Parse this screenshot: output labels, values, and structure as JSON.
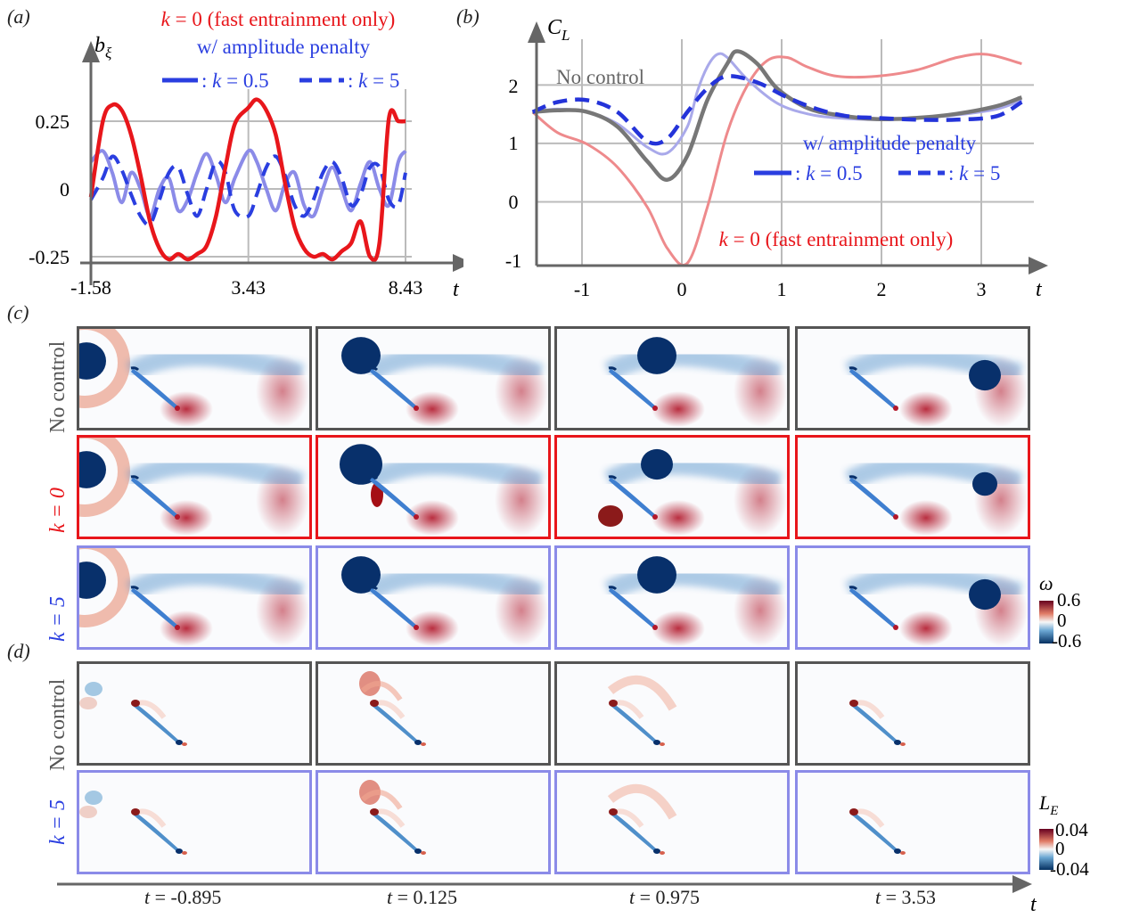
{
  "panels": {
    "a": "a",
    "b": "b",
    "c": "c",
    "d": "d"
  },
  "chart_data": [
    {
      "type": "line",
      "panel": "a",
      "ylabel": "bξ",
      "xlabel": "t",
      "x_ticks": [
        "-1.58",
        "3.43",
        "8.43"
      ],
      "y_ticks": [
        "0.25",
        "0",
        "-0.25"
      ],
      "xlim": [
        -1.58,
        8.43
      ],
      "ylim": [
        -0.25,
        0.25
      ],
      "legend_title": "w/ amplitude penalty",
      "series": [
        {
          "name": "k = 0 (fast entrainment only)",
          "color": "#e8161b",
          "x": [
            -1.58,
            -1.2,
            -0.9,
            -0.6,
            -0.3,
            0.0,
            0.3,
            0.6,
            0.9,
            1.2,
            1.5,
            1.8,
            2.1,
            2.4,
            2.7,
            3.0,
            3.43,
            3.7,
            4.0,
            4.3,
            4.6,
            4.9,
            5.2,
            5.5,
            5.8,
            6.1,
            6.4,
            6.7,
            7.0,
            7.3,
            7.6,
            7.9,
            8.2,
            8.43
          ],
          "y": [
            -0.03,
            0.25,
            0.31,
            0.29,
            0.2,
            0.05,
            -0.12,
            -0.22,
            -0.26,
            -0.24,
            -0.26,
            -0.24,
            -0.21,
            -0.1,
            0.08,
            0.24,
            0.3,
            0.33,
            0.29,
            0.2,
            0.02,
            -0.14,
            -0.22,
            -0.25,
            -0.24,
            -0.26,
            -0.23,
            -0.2,
            -0.12,
            -0.25,
            -0.2,
            0.26,
            0.25,
            0.25
          ]
        },
        {
          "name": "k = 0.5",
          "color": "#8b8be8",
          "x": [
            -1.58,
            -1.2,
            -0.9,
            -0.6,
            -0.3,
            0.0,
            0.3,
            0.6,
            0.9,
            1.2,
            1.5,
            1.8,
            2.1,
            2.4,
            2.7,
            3.0,
            3.43,
            3.7,
            4.0,
            4.3,
            4.6,
            4.9,
            5.2,
            5.5,
            5.8,
            6.1,
            6.4,
            6.7,
            7.0,
            7.3,
            7.6,
            7.9,
            8.2,
            8.43
          ],
          "y": [
            0.1,
            0.14,
            0.06,
            -0.05,
            0.06,
            0.0,
            -0.1,
            0.0,
            0.04,
            -0.08,
            -0.04,
            0.06,
            0.13,
            0.05,
            -0.05,
            0.04,
            0.14,
            0.1,
            0.0,
            -0.08,
            0.02,
            0.06,
            -0.06,
            -0.1,
            0.0,
            0.08,
            0.0,
            -0.08,
            0.02,
            0.1,
            0.0,
            -0.06,
            0.1,
            0.14
          ]
        },
        {
          "name": "k = 5",
          "color": "#2a3ee0",
          "x": [
            -1.58,
            -1.2,
            -0.9,
            -0.6,
            -0.3,
            0.0,
            0.3,
            0.6,
            0.9,
            1.2,
            1.5,
            1.8,
            2.1,
            2.4,
            2.7,
            3.0,
            3.43,
            3.7,
            4.0,
            4.3,
            4.6,
            4.9,
            5.2,
            5.5,
            5.8,
            6.1,
            6.4,
            6.7,
            7.0,
            7.3,
            7.6,
            7.9,
            8.2,
            8.43
          ],
          "y": [
            -0.04,
            0.04,
            0.12,
            0.07,
            -0.02,
            -0.1,
            -0.13,
            -0.04,
            0.06,
            0.08,
            -0.02,
            -0.1,
            0.0,
            0.1,
            0.06,
            -0.08,
            -0.1,
            -0.02,
            0.08,
            0.12,
            0.05,
            -0.06,
            -0.1,
            -0.04,
            0.06,
            0.1,
            0.04,
            -0.06,
            -0.02,
            0.08,
            0.08,
            -0.04,
            -0.06,
            0.06
          ]
        }
      ]
    },
    {
      "type": "line",
      "panel": "b",
      "ylabel": "CL",
      "xlabel": "t",
      "x_ticks": [
        "-1",
        "0",
        "1",
        "2",
        "3"
      ],
      "y_ticks": [
        "2",
        "1",
        "0",
        "-1"
      ],
      "xlim": [
        -1.45,
        3.45
      ],
      "ylim": [
        -1,
        2.6
      ],
      "annotations": [
        "No control",
        "w/ amplitude penalty",
        "k = 0 (fast entrainment only)"
      ],
      "series": [
        {
          "name": "No control",
          "color": "#777777",
          "x": [
            -1.45,
            -1.2,
            -0.9,
            -0.6,
            -0.3,
            -0.1,
            0.1,
            0.3,
            0.5,
            0.6,
            0.8,
            1.0,
            1.3,
            1.6,
            2.0,
            2.4,
            2.8,
            3.2,
            3.45
          ],
          "y": [
            1.55,
            1.58,
            1.55,
            1.3,
            0.7,
            0.38,
            0.8,
            1.75,
            2.35,
            2.55,
            2.35,
            1.95,
            1.62,
            1.5,
            1.43,
            1.45,
            1.52,
            1.65,
            1.8
          ]
        },
        {
          "name": "k = 0 (fast entrainment only)",
          "color": "#ee8a8c",
          "x": [
            -1.45,
            -1.2,
            -0.9,
            -0.6,
            -0.3,
            -0.1,
            0.1,
            0.3,
            0.5,
            0.7,
            0.9,
            1.1,
            1.3,
            1.6,
            2.0,
            2.4,
            2.8,
            3.1,
            3.45
          ],
          "y": [
            1.55,
            1.2,
            1.0,
            0.6,
            -0.1,
            -0.8,
            -1.05,
            -0.1,
            1.2,
            2.0,
            2.4,
            2.45,
            2.3,
            2.15,
            2.15,
            2.25,
            2.45,
            2.5,
            2.35
          ]
        },
        {
          "name": "k = 0.5",
          "color": "#a9a9ea",
          "x": [
            -1.45,
            -1.2,
            -0.9,
            -0.6,
            -0.3,
            -0.1,
            0.1,
            0.2,
            0.3,
            0.4,
            0.5,
            0.7,
            1.0,
            1.3,
            1.6,
            2.0,
            2.4,
            2.8,
            3.2,
            3.45
          ],
          "y": [
            1.55,
            1.6,
            1.55,
            1.35,
            0.95,
            0.85,
            1.3,
            1.9,
            2.3,
            2.5,
            2.45,
            2.1,
            1.7,
            1.52,
            1.45,
            1.42,
            1.45,
            1.5,
            1.6,
            1.75
          ]
        },
        {
          "name": "k = 5",
          "color": "#2433d9",
          "x": [
            -1.45,
            -1.2,
            -0.9,
            -0.6,
            -0.3,
            -0.1,
            0.1,
            0.3,
            0.5,
            0.8,
            1.1,
            1.4,
            1.7,
            2.0,
            2.4,
            2.8,
            3.2,
            3.45
          ],
          "y": [
            1.55,
            1.72,
            1.75,
            1.55,
            1.05,
            1.1,
            1.55,
            1.95,
            2.15,
            2.05,
            1.8,
            1.6,
            1.48,
            1.45,
            1.42,
            1.42,
            1.48,
            1.72
          ]
        }
      ]
    }
  ],
  "legend_a": {
    "k0": "k = 0 (fast entrainment only)",
    "penalty": "w/ amplitude penalty",
    "k05": ": k = 0.5",
    "k5": ": k = 5"
  },
  "legend_b": {
    "penalty": "w/ amplitude penalty",
    "k05": ": k = 0.5",
    "k5": ": k = 5",
    "nocontrol": "No control",
    "k0": "k = 0 (fast entrainment only)"
  },
  "rows_c": [
    "No control",
    "k = 0",
    "k = 5"
  ],
  "rows_d": [
    "No control",
    "k = 5"
  ],
  "colorbar_c": {
    "symbol": "ω",
    "max": "0.6",
    "mid": "0",
    "min": "-0.6"
  },
  "colorbar_d": {
    "symbol": "LE",
    "max": "0.04",
    "mid": "0",
    "min": "-0.04"
  },
  "time_captions": [
    "t = -0.895",
    "t = 0.125",
    "t = 0.975",
    "t = 3.53"
  ],
  "time_axis_label": "t",
  "colors": {
    "red": "#e8161b",
    "blue": "#2a3ee0",
    "lightblue": "#8b8be8",
    "gray": "#555555",
    "vort_pos": "#b2182b",
    "vort_neg": "#08306b"
  }
}
